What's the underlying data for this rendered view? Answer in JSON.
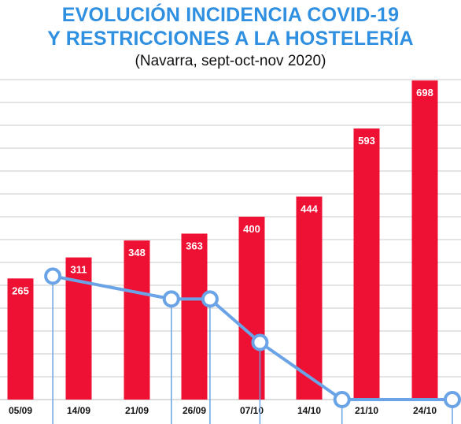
{
  "title_lines": [
    "EVOLUCIÓN INCIDENCIA COVID-19",
    "Y RESTRICCIONES A LA HOSTELERÍA"
  ],
  "subtitle": "(Navarra, sept-oct-nov 2020)",
  "colors": {
    "title": "#2f8fe0",
    "bar": "#ee1133",
    "line": "#6aa3e6",
    "grid": "#c8c8c8",
    "bar_label": "#ffffff"
  },
  "chart_data": {
    "type": "bar",
    "title": "EVOLUCIÓN INCIDENCIA COVID-19 Y RESTRICCIONES A LA HOSTELERÍA",
    "subtitle": "(Navarra, sept-oct-nov 2020)",
    "categories": [
      "05/09",
      "14/09",
      "21/09",
      "26/09",
      "07/10",
      "14/10",
      "21/10",
      "24/10"
    ],
    "values": [
      265,
      311,
      348,
      363,
      400,
      444,
      593,
      698
    ],
    "ylim": [
      0,
      700
    ],
    "grid": true,
    "xlabel": "",
    "ylabel": "",
    "restrictions_line": {
      "type": "line",
      "description": "unlabeled line with circle markers",
      "points": [
        {
          "x": "10/09",
          "y": 270
        },
        {
          "x": "24/09",
          "y": 220
        },
        {
          "x": "29/09",
          "y": 220
        },
        {
          "x": "08/10",
          "y": 125
        },
        {
          "x": "18/10",
          "y": 0
        },
        {
          "x": "27/10",
          "y": 0
        }
      ]
    }
  }
}
